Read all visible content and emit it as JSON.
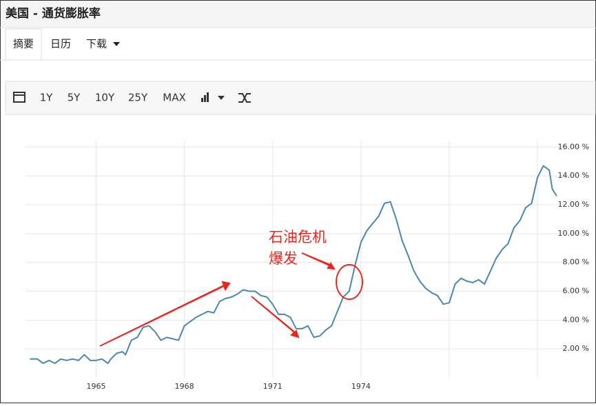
{
  "header": {
    "title": "美国 - 通货膨胀率"
  },
  "tabs": [
    "摘要",
    "日历",
    "下载"
  ],
  "toolbar": [
    "1Y",
    "5Y",
    "10Y",
    "25Y",
    "MAX"
  ],
  "chart_data": {
    "type": "line",
    "annotations": [
      "石油危机",
      "爆发"
    ],
    "x": [
      1962.75,
      1963.0,
      1963.2,
      1963.4,
      1963.6,
      1963.8,
      1964.0,
      1964.2,
      1964.4,
      1964.6,
      1964.8,
      1965.0,
      1965.2,
      1965.4,
      1965.5,
      1965.7,
      1965.9,
      1966.0,
      1966.2,
      1966.4,
      1966.6,
      1966.8,
      1967.0,
      1967.2,
      1967.4,
      1967.6,
      1967.8,
      1968.0,
      1968.2,
      1968.4,
      1968.6,
      1968.8,
      1969.0,
      1969.2,
      1969.4,
      1969.6,
      1969.8,
      1970.0,
      1970.2,
      1970.4,
      1970.6,
      1970.8,
      1971.0,
      1971.2,
      1971.4,
      1971.6,
      1971.8,
      1972.0,
      1972.2,
      1972.4,
      1972.6,
      1972.8,
      1973.0,
      1973.2,
      1973.4,
      1973.6,
      1973.8,
      1974.0,
      1974.2,
      1974.4,
      1974.6,
      1974.8,
      1975.0,
      1975.2,
      1975.4,
      1975.6,
      1975.8,
      1976.0,
      1976.2,
      1976.4,
      1976.6,
      1976.8,
      1977.0,
      1977.2,
      1977.4,
      1977.6,
      1977.8,
      1978.0,
      1978.2,
      1978.4,
      1978.6,
      1978.8,
      1979.0,
      1979.2,
      1979.4,
      1979.6,
      1979.8,
      1980.0,
      1980.2,
      1980.4,
      1980.5,
      1980.65
    ],
    "series": [
      {
        "color": "#4a86b0",
        "values": [
          1.3,
          1.3,
          1.0,
          1.2,
          1.0,
          1.3,
          1.2,
          1.3,
          1.2,
          1.6,
          1.2,
          1.2,
          1.3,
          1.0,
          1.3,
          1.7,
          1.8,
          1.6,
          2.6,
          2.8,
          3.5,
          3.6,
          3.2,
          2.6,
          2.8,
          2.7,
          2.6,
          3.6,
          3.9,
          4.2,
          4.4,
          4.6,
          4.5,
          5.3,
          5.5,
          5.6,
          5.8,
          6.1,
          6.0,
          6.0,
          5.7,
          5.6,
          5.1,
          4.4,
          4.4,
          4.2,
          3.4,
          3.4,
          3.6,
          2.8,
          2.9,
          3.3,
          3.6,
          4.6,
          5.6,
          6.0,
          7.8,
          9.4,
          10.2,
          10.7,
          11.2,
          12.1,
          12.2,
          11.0,
          9.5,
          8.5,
          7.4,
          6.7,
          6.2,
          5.9,
          5.7,
          5.1,
          5.2,
          6.5,
          6.9,
          6.7,
          6.6,
          6.8,
          6.5,
          7.4,
          8.3,
          8.9,
          9.3,
          10.4,
          10.9,
          11.8,
          12.1,
          13.9,
          14.7,
          14.4,
          13.1,
          12.6
        ]
      }
    ],
    "xlim": [
      1962.6,
      1980.7
    ],
    "xticks": [
      1965,
      1968,
      1971,
      1974
    ],
    "xgrid": [
      1965,
      1968,
      1971,
      1974,
      1977,
      1980
    ],
    "ylim": [
      0,
      16.4
    ],
    "yticks": [
      {
        "value": 2,
        "label": "2.00 %"
      },
      {
        "value": 4,
        "label": "4.00 %"
      },
      {
        "value": 6,
        "label": "6.00 %"
      },
      {
        "value": 8,
        "label": "8.00 %"
      },
      {
        "value": 10,
        "label": "10.00 %"
      },
      {
        "value": 12,
        "label": "12.00 %"
      },
      {
        "value": 14,
        "label": "14.00 %"
      },
      {
        "value": 16,
        "label": "16.00 %"
      }
    ],
    "grid": true
  }
}
